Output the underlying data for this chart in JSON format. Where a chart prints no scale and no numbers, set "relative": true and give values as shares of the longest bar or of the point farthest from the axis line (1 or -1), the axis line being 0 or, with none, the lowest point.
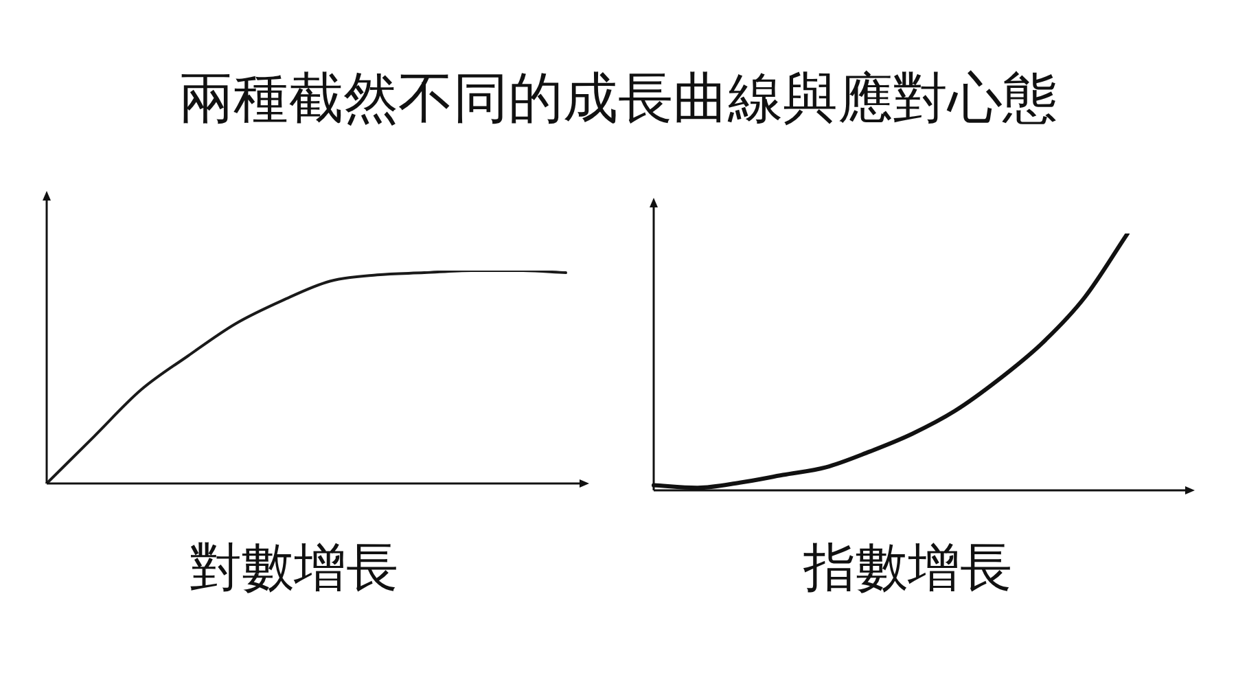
{
  "chart_data": [
    {
      "type": "line",
      "title": "兩種截然不同的成長曲線與應對心態",
      "xlabel": "對數增長",
      "categories": [
        null,
        null,
        null,
        null,
        null,
        null,
        null,
        null,
        null,
        null,
        null,
        null
      ],
      "relative": true,
      "marker": "none",
      "series": [
        {
          "color": "#1a1a1a",
          "values": [
            0,
            0.22,
            0.44,
            0.6,
            0.75,
            0.86,
            0.95,
            0.98,
            0.99,
            1,
            1,
            0.99
          ]
        }
      ]
    },
    {
      "type": "line",
      "xlabel": "指數增長",
      "categories": [
        null,
        null,
        null,
        null,
        null,
        null,
        null,
        null,
        null,
        null,
        null,
        null
      ],
      "relative": true,
      "marker": "none",
      "series": [
        {
          "color": "#111111",
          "values": [
            0.02,
            0.01,
            0.03,
            0.06,
            0.09,
            0.15,
            0.22,
            0.31,
            0.43,
            0.57,
            0.75,
            1
          ]
        }
      ]
    }
  ]
}
